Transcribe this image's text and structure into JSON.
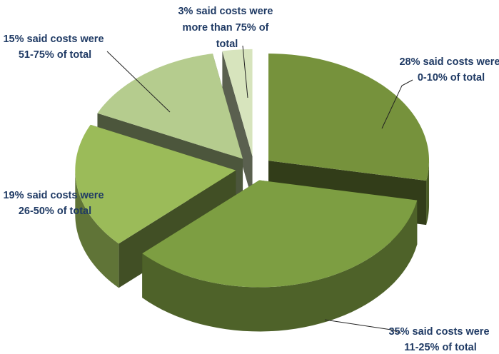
{
  "chart_data": {
    "type": "pie",
    "style": "3d-exploded",
    "title": "",
    "slices": [
      {
        "value": 28,
        "line1": "28% said costs were",
        "line2": "0-10% of total",
        "color": "#76923c"
      },
      {
        "value": 35,
        "line1": "35% said costs were",
        "line2": "11-25% of total",
        "color": "#7d9e42"
      },
      {
        "value": 19,
        "line1": "19% said costs were",
        "line2": "26-50% of total",
        "color": "#9bbb59"
      },
      {
        "value": 15,
        "line1": "15% said costs were",
        "line2": "51-75% of total",
        "color": "#b5cc8e"
      },
      {
        "value": 3,
        "line1": "3% said costs were",
        "line2": "more than 75% of",
        "line3": "total",
        "color": "#d7e4bd"
      }
    ]
  }
}
